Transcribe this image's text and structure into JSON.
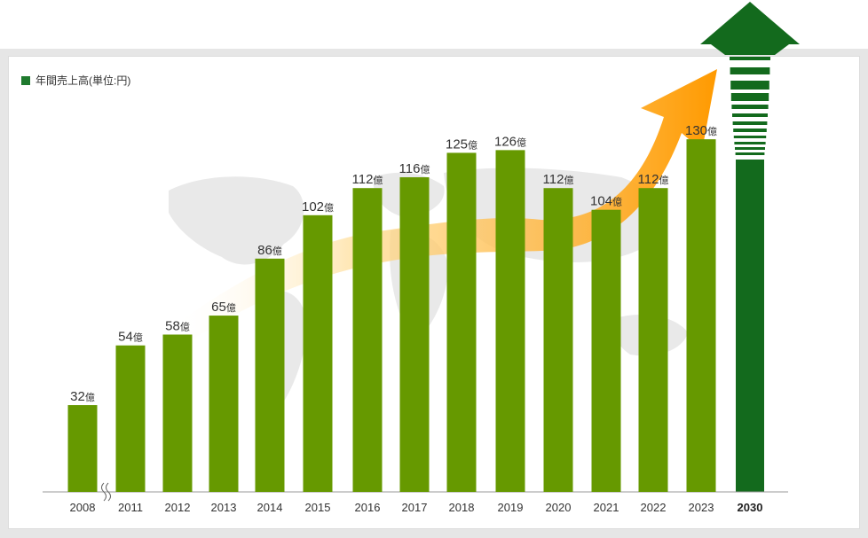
{
  "chart_data": {
    "type": "bar",
    "legend": {
      "label": "年間売上高(単位:円)",
      "color": "#1f7a2e"
    },
    "categories": [
      "2008",
      "2011",
      "2012",
      "2013",
      "2014",
      "2015",
      "2016",
      "2017",
      "2018",
      "2019",
      "2020",
      "2021",
      "2022",
      "2023",
      "2030"
    ],
    "values": [
      32,
      54,
      58,
      65,
      86,
      102,
      112,
      116,
      125,
      126,
      112,
      104,
      112,
      130,
      null
    ],
    "value_unit": "億",
    "axis_break_after": "2008",
    "target_category": "2030",
    "target_style": "upward-arrow",
    "ylim": [
      0,
      165
    ],
    "colors": {
      "bar": "#669900",
      "target": "#136a1d",
      "trend_arrow": "#ff9900"
    }
  }
}
